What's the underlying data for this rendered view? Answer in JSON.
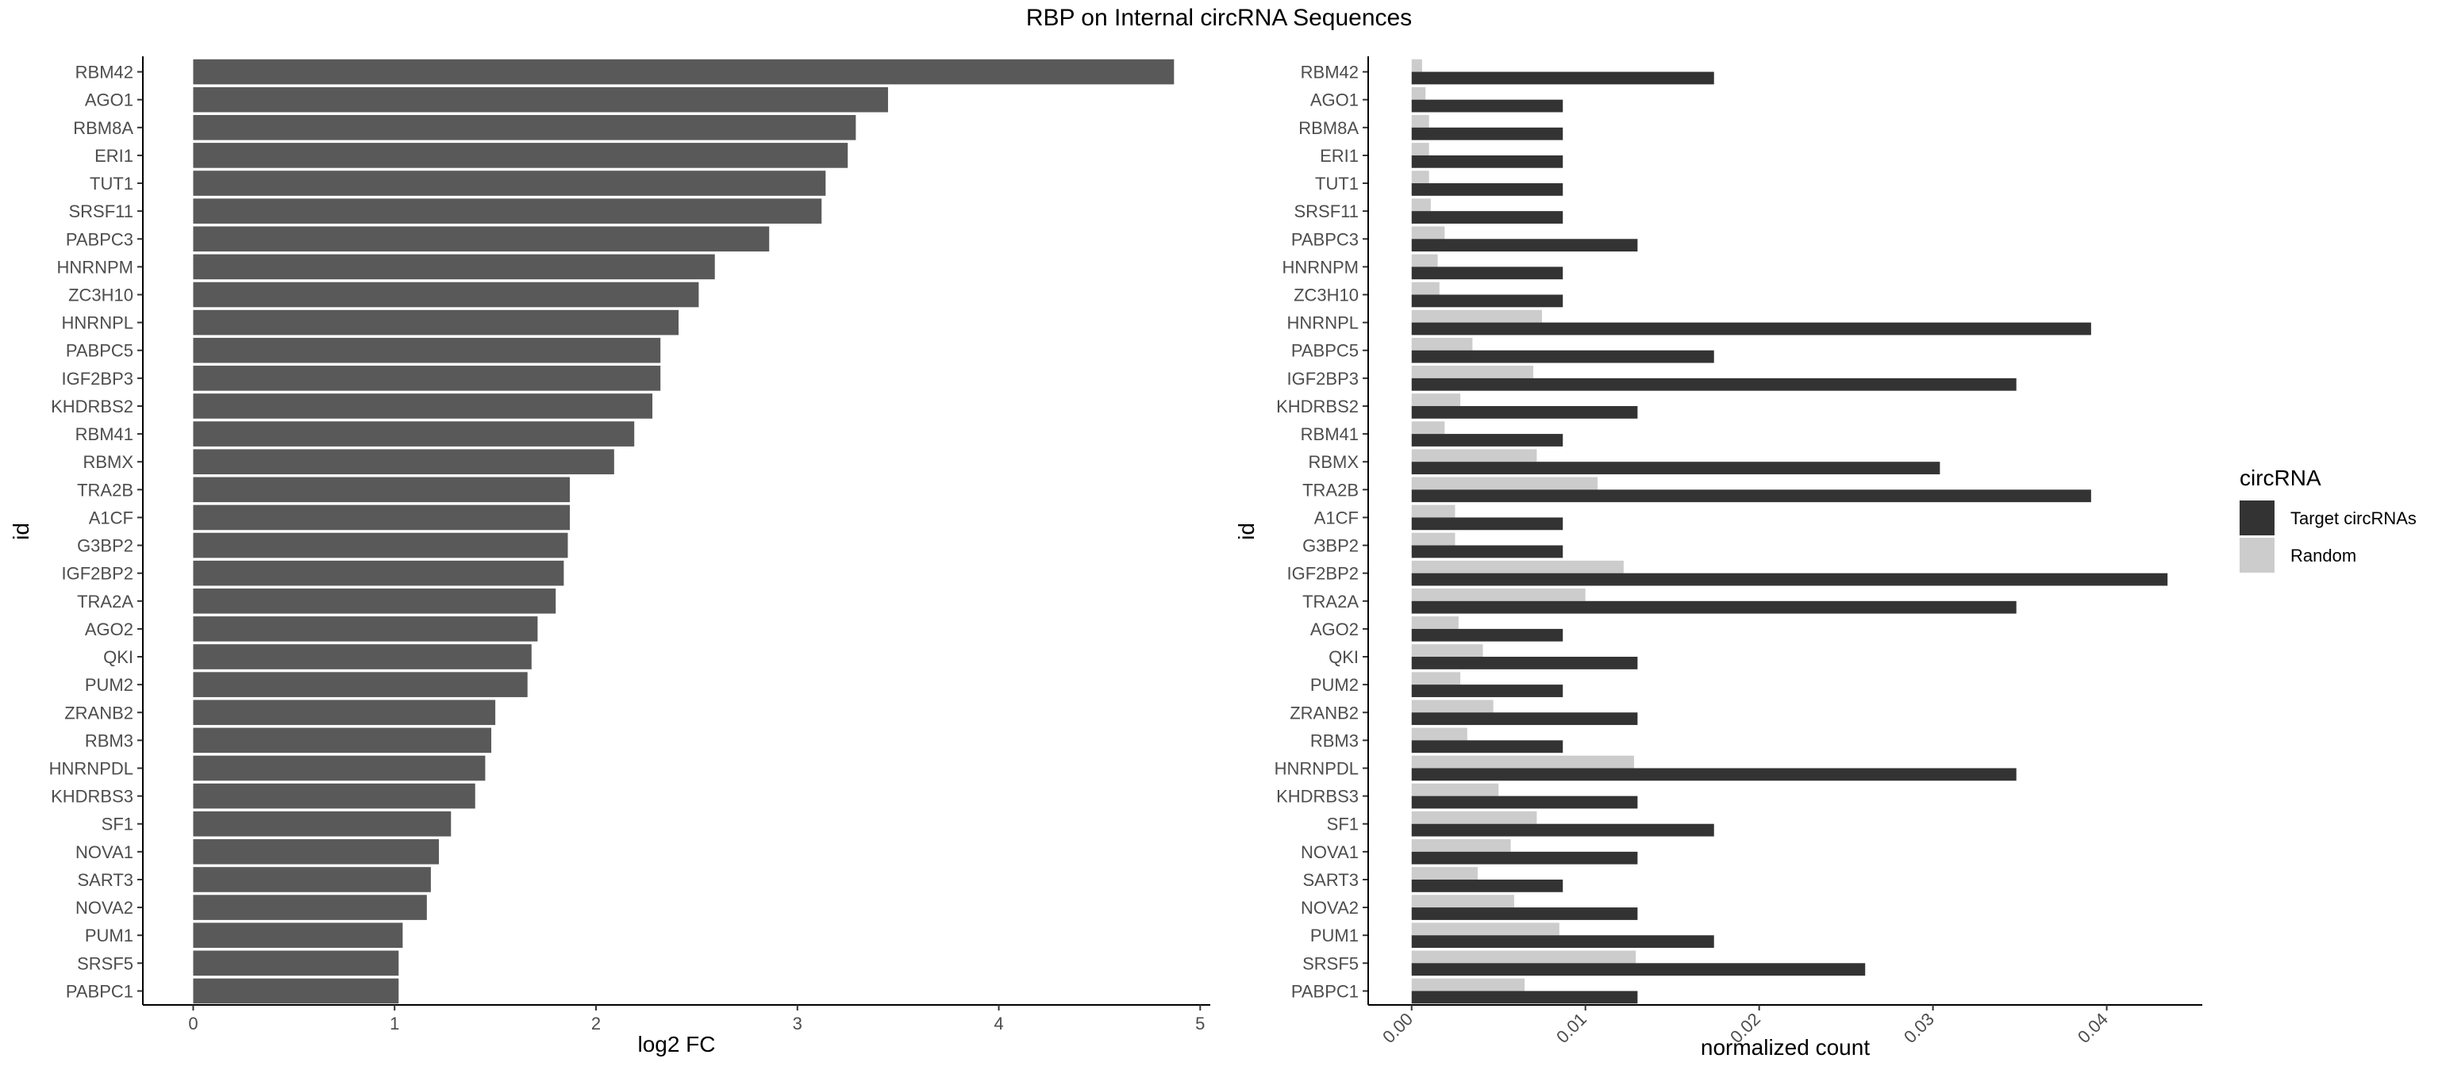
{
  "figure": {
    "title": "RBP on Internal circRNA Sequences"
  },
  "chart_data": [
    {
      "type": "bar",
      "orientation": "horizontal",
      "xlabel": "log2 FC",
      "ylabel": "id",
      "xlim": [
        -0.25,
        5.05
      ],
      "xticks": [
        0,
        1,
        2,
        3,
        4,
        5
      ],
      "grid": false,
      "bar_color": "#595959",
      "categories": [
        "RBM42",
        "AGO1",
        "RBM8A",
        "ERI1",
        "TUT1",
        "SRSF11",
        "PABPC3",
        "HNRNPM",
        "ZC3H10",
        "HNRNPL",
        "PABPC5",
        "IGF2BP3",
        "KHDRBS2",
        "RBM41",
        "RBMX",
        "TRA2B",
        "A1CF",
        "G3BP2",
        "IGF2BP2",
        "TRA2A",
        "AGO2",
        "QKI",
        "PUM2",
        "ZRANB2",
        "RBM3",
        "HNRNPDL",
        "KHDRBS3",
        "SF1",
        "NOVA1",
        "SART3",
        "NOVA2",
        "PUM1",
        "SRSF5",
        "PABPC1"
      ],
      "values": [
        4.87,
        3.45,
        3.29,
        3.25,
        3.14,
        3.12,
        2.86,
        2.59,
        2.51,
        2.41,
        2.32,
        2.32,
        2.28,
        2.19,
        2.09,
        1.87,
        1.87,
        1.86,
        1.84,
        1.8,
        1.71,
        1.68,
        1.66,
        1.5,
        1.48,
        1.45,
        1.4,
        1.28,
        1.22,
        1.18,
        1.16,
        1.04,
        1.02,
        1.02
      ]
    },
    {
      "type": "bar",
      "orientation": "horizontal",
      "grouped": true,
      "xlabel": "normalized count",
      "ylabel": "id",
      "xlim": [
        -0.0025,
        0.0455
      ],
      "xticks": [
        "0.00",
        "0.01",
        "0.02",
        "0.03",
        "0.04"
      ],
      "grid": false,
      "legend": {
        "title": "circRNA",
        "placement": "right"
      },
      "categories": [
        "RBM42",
        "AGO1",
        "RBM8A",
        "ERI1",
        "TUT1",
        "SRSF11",
        "PABPC3",
        "HNRNPM",
        "ZC3H10",
        "HNRNPL",
        "PABPC5",
        "IGF2BP3",
        "KHDRBS2",
        "RBM41",
        "RBMX",
        "TRA2B",
        "A1CF",
        "G3BP2",
        "IGF2BP2",
        "TRA2A",
        "AGO2",
        "QKI",
        "PUM2",
        "ZRANB2",
        "RBM3",
        "HNRNPDL",
        "KHDRBS3",
        "SF1",
        "NOVA1",
        "SART3",
        "NOVA2",
        "PUM1",
        "SRSF5",
        "PABPC1"
      ],
      "series": [
        {
          "name": "Target circRNAs",
          "color": "#333333",
          "values": [
            0.0174,
            0.0087,
            0.0087,
            0.0087,
            0.0087,
            0.0087,
            0.013,
            0.0087,
            0.0087,
            0.0391,
            0.0174,
            0.0348,
            0.013,
            0.0087,
            0.0304,
            0.0391,
            0.0087,
            0.0087,
            0.0435,
            0.0348,
            0.0087,
            0.013,
            0.0087,
            0.013,
            0.0087,
            0.0348,
            0.013,
            0.0174,
            0.013,
            0.0087,
            0.013,
            0.0174,
            0.0261,
            0.013
          ]
        },
        {
          "name": "Random",
          "color": "#cccccc",
          "values": [
            0.0006,
            0.0008,
            0.001,
            0.001,
            0.001,
            0.0011,
            0.0019,
            0.0015,
            0.0016,
            0.0075,
            0.0035,
            0.007,
            0.0028,
            0.0019,
            0.0072,
            0.0107,
            0.0025,
            0.0025,
            0.0122,
            0.01,
            0.0027,
            0.0041,
            0.0028,
            0.0047,
            0.0032,
            0.0128,
            0.005,
            0.0072,
            0.0057,
            0.0038,
            0.0059,
            0.0085,
            0.0129,
            0.0065
          ]
        }
      ]
    }
  ]
}
